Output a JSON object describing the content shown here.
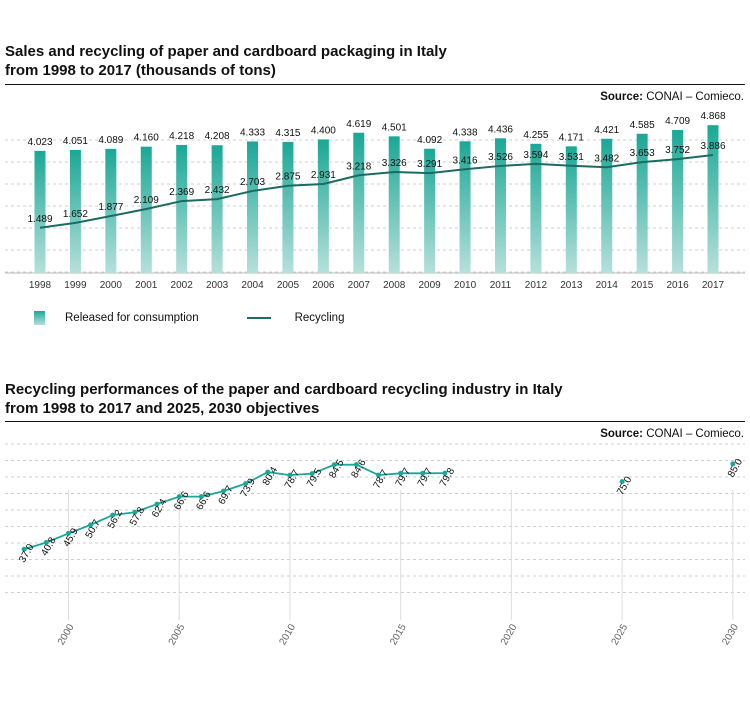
{
  "chart1": {
    "title_line1": "Sales and recycling of paper and cardboard packaging in Italy",
    "title_line2": "from 1998 to 2017 (thousands of tons)",
    "source_label": "Source:",
    "source_text": "CONAI – Comieco.",
    "legend": {
      "bars": "Released for consumption",
      "line": "Recycling"
    },
    "colors": {
      "bar_top": "#1aa896",
      "bar_bottom": "#b6e0da",
      "line": "#1b6b62",
      "grid": "#cfcfcf"
    }
  },
  "chart2": {
    "title_line1": "Recycling performances of the paper and cardboard recycling industry in Italy",
    "title_line2": "from 1998 to 2017 and 2025, 2030 objectives",
    "source_label": "Source:",
    "source_text": "CONAI – Comieco.",
    "colors": {
      "line": "#1aa896",
      "point": "#1aa896",
      "grid": "#cfcfcf",
      "stem": "#dddddd"
    }
  },
  "chart_data": [
    {
      "type": "bar",
      "categories": [
        "1998",
        "1999",
        "2000",
        "2001",
        "2002",
        "2003",
        "2004",
        "2005",
        "2006",
        "2007",
        "2008",
        "2009",
        "2010",
        "2011",
        "2012",
        "2013",
        "2014",
        "2015",
        "2016",
        "2017"
      ],
      "series": [
        {
          "name": "Released for consumption",
          "type": "bar",
          "values": [
            4023,
            4051,
            4089,
            4160,
            4218,
            4208,
            4333,
            4315,
            4400,
            4619,
            4501,
            4092,
            4338,
            4436,
            4255,
            4171,
            4421,
            4585,
            4709,
            4868
          ],
          "labels": [
            "4.023",
            "4.051",
            "4.089",
            "4.160",
            "4.218",
            "4.208",
            "4.333",
            "4.315",
            "4.400",
            "4.619",
            "4.501",
            "4.092",
            "4.338",
            "4.436",
            "4.255",
            "4.171",
            "4.421",
            "4.585",
            "4.709",
            "4.868"
          ]
        },
        {
          "name": "Recycling",
          "type": "line",
          "values": [
            1489,
            1652,
            1877,
            2109,
            2369,
            2432,
            2703,
            2875,
            2931,
            3218,
            3326,
            3291,
            3416,
            3526,
            3594,
            3531,
            3482,
            3653,
            3752,
            3886
          ],
          "labels": [
            "1.489",
            "1.652",
            "1.877",
            "2.109",
            "2.369",
            "2.432",
            "2.703",
            "2.875",
            "2.931",
            "3.218",
            "3.326",
            "3.291",
            "3.416",
            "3.526",
            "3.594",
            "3.531",
            "3.482",
            "3.653",
            "3.752",
            "3.886"
          ]
        }
      ],
      "ylim": [
        0,
        5500
      ],
      "grid": true,
      "legend_position": "bottom-left"
    },
    {
      "type": "line",
      "x": [
        1998,
        1999,
        2000,
        2001,
        2002,
        2003,
        2004,
        2005,
        2006,
        2007,
        2008,
        2009,
        2010,
        2011,
        2012,
        2013,
        2014,
        2015,
        2016,
        2017
      ],
      "values": [
        37.0,
        40.8,
        45.9,
        50.7,
        56.2,
        57.8,
        62.4,
        66.6,
        66.6,
        69.7,
        73.9,
        80.4,
        78.7,
        79.5,
        84.5,
        84.6,
        78.7,
        79.7,
        79.7,
        79.8
      ],
      "labels": [
        "37.0",
        "40.8",
        "45.9",
        "50.7",
        "56.2",
        "57.8",
        "62.4",
        "66.6",
        "66.6",
        "69.7",
        "73.9",
        "80.4",
        "78.7",
        "79.5",
        "84.5",
        "84.6",
        "78.7",
        "79.7",
        "79.7",
        "79.8"
      ],
      "objectives": [
        {
          "x": 2025,
          "value": 75.0,
          "label": "75.0"
        },
        {
          "x": 2030,
          "value": 85.0,
          "label": "85.0"
        }
      ],
      "xticks": [
        "2000",
        "2005",
        "2010",
        "2015",
        "2020",
        "2025",
        "2030"
      ],
      "xlim": [
        1997,
        2031
      ],
      "ylim": [
        0,
        90
      ],
      "grid": true
    }
  ]
}
